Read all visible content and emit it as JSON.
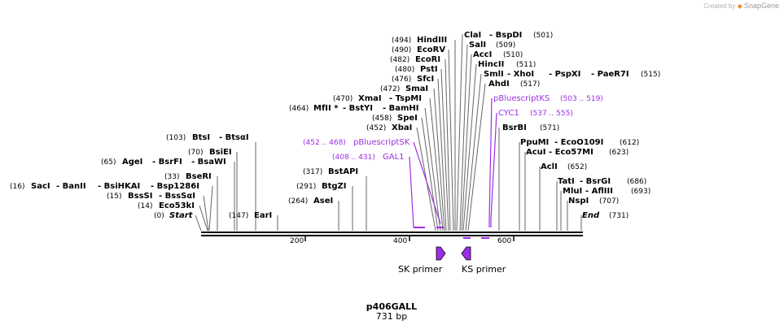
{
  "credit": {
    "text": "Created by",
    "brand": "SnapGene"
  },
  "title": "p406GALL",
  "length_label": "731 bp",
  "ticks": [
    "200",
    "400",
    "600"
  ],
  "sites": [
    {
      "pos": "(494)",
      "names": [
        "HindIII"
      ]
    },
    {
      "pos": "(490)",
      "names": [
        "EcoRV"
      ]
    },
    {
      "pos": "(482)",
      "names": [
        "EcoRI"
      ]
    },
    {
      "pos": "(480)",
      "names": [
        "PstI"
      ]
    },
    {
      "pos": "(476)",
      "names": [
        "SfcI"
      ]
    },
    {
      "pos": "(472)",
      "names": [
        "SmaI"
      ]
    },
    {
      "pos": "(470)",
      "names": [
        "XmaI",
        "TspMI"
      ]
    },
    {
      "pos": "(464)",
      "names": [
        "MfII *",
        "BstYI",
        "BamHI"
      ]
    },
    {
      "pos": "(458)",
      "names": [
        "SpeI"
      ]
    },
    {
      "pos": "(452)",
      "names": [
        "XbaI"
      ]
    },
    {
      "pos": "(501)",
      "names": [
        "ClaI",
        "BspDI"
      ]
    },
    {
      "pos": "(509)",
      "names": [
        "SalI"
      ]
    },
    {
      "pos": "(510)",
      "names": [
        "AccI"
      ]
    },
    {
      "pos": "(511)",
      "names": [
        "HincII"
      ]
    },
    {
      "pos": "(515)",
      "names": [
        "SmlI",
        "XhoI",
        "PspXI",
        "PaeR7I"
      ]
    },
    {
      "pos": "(517)",
      "names": [
        "AhdI"
      ]
    },
    {
      "pos": "(571)",
      "names": [
        "BsrBI"
      ]
    },
    {
      "pos": "(612)",
      "names": [
        "PpuMI",
        "EcoO109I"
      ]
    },
    {
      "pos": "(623)",
      "names": [
        "AcuI",
        "Eco57MI"
      ]
    },
    {
      "pos": "(652)",
      "names": [
        "AclI"
      ]
    },
    {
      "pos": "(686)",
      "names": [
        "TatI",
        "BsrGI"
      ]
    },
    {
      "pos": "(693)",
      "names": [
        "MluI",
        "AflIII"
      ]
    },
    {
      "pos": "(707)",
      "names": [
        "NspI"
      ]
    },
    {
      "pos": "(731)",
      "names": [
        "End"
      ]
    },
    {
      "pos": "(103)",
      "names": [
        "BtsI",
        "BtsαI"
      ]
    },
    {
      "pos": "(70)",
      "names": [
        "BsiEI"
      ]
    },
    {
      "pos": "(65)",
      "names": [
        "AgeI",
        "BsrFI",
        "BsaWI"
      ]
    },
    {
      "pos": "(33)",
      "names": [
        "BseRI"
      ]
    },
    {
      "pos": "(16)",
      "names": [
        "SacI",
        "BanII",
        "BsiHKAI",
        "Bsp1286I"
      ]
    },
    {
      "pos": "(15)",
      "names": [
        "BssSI",
        "BssSαI"
      ]
    },
    {
      "pos": "(14)",
      "names": [
        "Eco53kI"
      ]
    },
    {
      "pos": "(0)",
      "names": [
        "Start"
      ]
    },
    {
      "pos": "(147)",
      "names": [
        "EarI"
      ]
    },
    {
      "pos": "(317)",
      "names": [
        "BstAPI"
      ]
    },
    {
      "pos": "(291)",
      "names": [
        "BtgZI"
      ]
    },
    {
      "pos": "(264)",
      "names": [
        "AseI"
      ]
    }
  ],
  "features": [
    {
      "name": "pBluescriptKS",
      "range": "(503 .. 519)"
    },
    {
      "name": "CYC1",
      "range": "(537 .. 555)"
    },
    {
      "name": "pBluescriptSK",
      "range": "(452 .. 468)"
    },
    {
      "name": "GAL1",
      "range": "(408 .. 431)"
    }
  ],
  "primers": [
    {
      "name": "SK primer"
    },
    {
      "name": "KS primer"
    }
  ],
  "colors": {
    "feature": "#9d2ee6",
    "line": "#000000",
    "credit": "#b0b0b0"
  }
}
